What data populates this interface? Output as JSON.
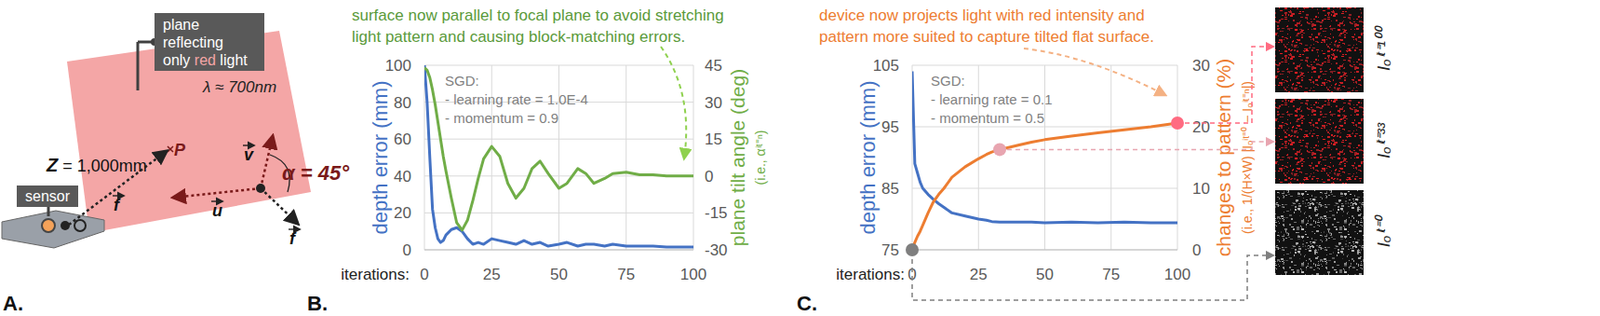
{
  "diagram": {
    "label": "A.",
    "note_lines": [
      "plane",
      "reflecting"
    ],
    "note_last": [
      "only ",
      "red",
      " light"
    ],
    "wavelength": "λ ≈ 700nm",
    "distance": "Z = 1,000mm",
    "point": "P",
    "angle": "α = 45°",
    "vectors": [
      "u",
      "v",
      "f",
      "f"
    ],
    "sensor": "sensor"
  },
  "chart_data": [
    {
      "type": "line",
      "panel_label": "B.",
      "annotation": [
        "surface now parallel to focal plane to avoid stretching",
        "light pattern and causing block-matching errors."
      ],
      "notes": [
        "SGD:",
        "- learning rate = 1.0E-4",
        "- momentum = 0.9"
      ],
      "x_label": "iterations:",
      "y_label": "depth error (mm)",
      "y2_label": [
        "plane tilt angle (deg)",
        "(i.e., αⁱᵗ⁼ⁿ)"
      ],
      "grid": true,
      "x": [
        0,
        1,
        2,
        3,
        4,
        5,
        6,
        7,
        8,
        10,
        12,
        14,
        16,
        18,
        20,
        22,
        25,
        28,
        31,
        34,
        37,
        40,
        43,
        46,
        50,
        53,
        57,
        60,
        63,
        67,
        70,
        75,
        80,
        85,
        90,
        95,
        100
      ],
      "xlim": [
        0,
        100
      ],
      "xticks": [
        0,
        25,
        50,
        75,
        100
      ],
      "ylim": [
        0,
        100
      ],
      "yticks": [
        0,
        20,
        40,
        60,
        80,
        100
      ],
      "y2lim": [
        -30,
        45
      ],
      "y2ticks": [
        -30,
        -15,
        0,
        15,
        30,
        45
      ],
      "series": [
        {
          "color": "#4472c4",
          "values": [
            100,
            80,
            50,
            22,
            12,
            6,
            4,
            5,
            8,
            11,
            12,
            10,
            6,
            3,
            4,
            3,
            6,
            5,
            4,
            3,
            5,
            3,
            4,
            2,
            3,
            4,
            2,
            3,
            3,
            2,
            3,
            2,
            2,
            2,
            1.5,
            1.5,
            1.5
          ]
        },
        {
          "color": "#70ad47",
          "axis": "y2",
          "values": [
            44,
            43,
            40,
            35,
            29,
            22,
            15,
            8,
            2,
            -9,
            -19,
            -22,
            -18,
            -10,
            -1,
            7,
            12,
            8,
            -3,
            -9,
            -5,
            3,
            6,
            1,
            -5,
            -3,
            3,
            1,
            -3,
            -1,
            1,
            1.5,
            0.5,
            0.5,
            0,
            0,
            0
          ]
        }
      ]
    },
    {
      "type": "line",
      "panel_label": "C.",
      "annotation": [
        "device now projects light with red intensity and",
        "pattern more suited to capture tilted flat surface."
      ],
      "notes": [
        "SGD:",
        "- learning rate = 0.1",
        "- momentum = 0.5"
      ],
      "x_label": "iterations:",
      "y_label": "depth error (mm)",
      "y2_label": [
        "changes to pattern (%)",
        "(i.e., 1/(H×W) |Iₒⁱᵗ⁼⁰ − Iₒⁱᵗ⁼ⁿ|)"
      ],
      "grid": true,
      "x": [
        0,
        1,
        2,
        3,
        4,
        6,
        8,
        10,
        12,
        15,
        20,
        25,
        28,
        30,
        33,
        40,
        45,
        50,
        60,
        70,
        80,
        90,
        100
      ],
      "xlim": [
        0,
        100
      ],
      "xticks": [
        0,
        25,
        50,
        75,
        100
      ],
      "ylim": [
        75,
        105
      ],
      "yticks": [
        75,
        85,
        95,
        105
      ],
      "y2lim": [
        0,
        30
      ],
      "y2ticks": [
        0,
        10,
        20,
        30
      ],
      "series": [
        {
          "color": "#4472c4",
          "values": [
            104,
            89,
            87.5,
            86,
            85,
            84,
            83.2,
            82.5,
            81.9,
            81,
            80.5,
            80,
            79.8,
            79.6,
            79.5,
            79.5,
            79.5,
            79.4,
            79.5,
            79.4,
            79.5,
            79.4,
            79.4
          ]
        },
        {
          "color": "#ed7d31",
          "axis": "y2",
          "values": [
            0,
            1.2,
            2.2,
            3,
            4,
            6,
            7.8,
            9,
            10,
            11.8,
            13.5,
            14.8,
            15.5,
            15.9,
            16.3,
            17,
            17.5,
            17.9,
            18.5,
            19,
            19.5,
            20,
            20.6
          ]
        }
      ],
      "highlights": {
        "x": [
          0,
          33,
          100
        ],
        "values": [
          0,
          16.3,
          20.6
        ],
        "colors": [
          "#7f7f7f",
          "#e8a5b0",
          "#ff6b81"
        ]
      }
    }
  ],
  "images": [
    {
      "label": "Iₒⁱᵗ⁼¹⁰⁰",
      "color": "red"
    },
    {
      "label": "Iₒⁱᵗ⁼³³",
      "color": "red"
    },
    {
      "label": "Iₒⁱᵗ⁼⁰",
      "color": "gray"
    }
  ]
}
